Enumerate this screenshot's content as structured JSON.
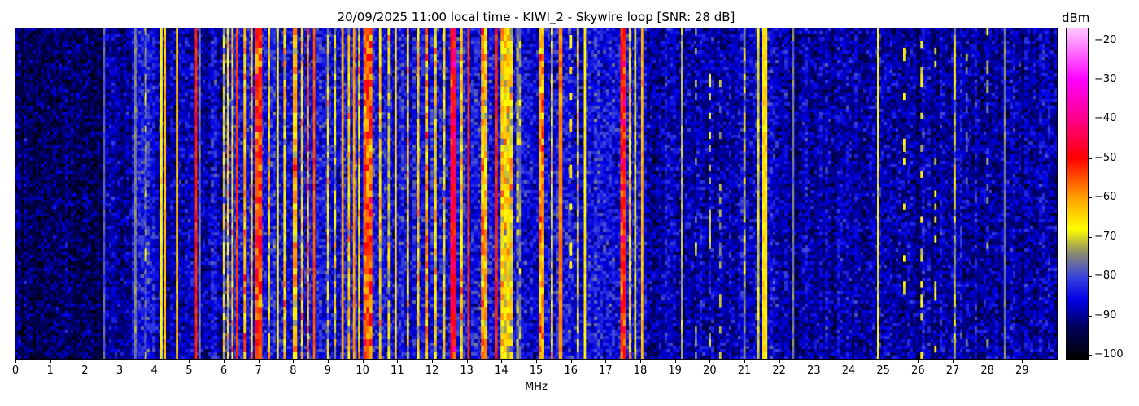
{
  "chart_data": {
    "type": "heatmap",
    "title": "20/09/2025 11:00 local time - KIWI_2 - Skywire loop [SNR: 28 dB]",
    "xlabel": "MHz",
    "ylabel": "",
    "xlim": [
      0,
      30
    ],
    "xticks": [
      0,
      1,
      2,
      3,
      4,
      5,
      6,
      7,
      8,
      9,
      10,
      11,
      12,
      13,
      14,
      15,
      16,
      17,
      18,
      19,
      20,
      21,
      22,
      23,
      24,
      25,
      26,
      27,
      28,
      29
    ],
    "colorbar": {
      "label": "dBm",
      "range": [
        -101,
        -17
      ],
      "ticks": [
        -20,
        -30,
        -40,
        -50,
        -60,
        -70,
        -80,
        -90,
        -100
      ],
      "colormap": [
        {
          "dbm": -101,
          "color": "#000000"
        },
        {
          "dbm": -93,
          "color": "#00005a"
        },
        {
          "dbm": -86,
          "color": "#0000e6"
        },
        {
          "dbm": -80,
          "color": "#3c46dc"
        },
        {
          "dbm": -74,
          "color": "#8c8c6e"
        },
        {
          "dbm": -68,
          "color": "#ffff00"
        },
        {
          "dbm": -60,
          "color": "#ffa000"
        },
        {
          "dbm": -50,
          "color": "#ff0000"
        },
        {
          "dbm": -40,
          "color": "#ff008c"
        },
        {
          "dbm": -30,
          "color": "#ff00ff"
        },
        {
          "dbm": -17,
          "color": "#ffc8ff"
        }
      ]
    },
    "noise_floor": [
      {
        "from": 0,
        "to": 2.5,
        "dbm": -93
      },
      {
        "from": 2.5,
        "to": 3.4,
        "dbm": -89
      },
      {
        "from": 3.4,
        "to": 4.0,
        "dbm": -83
      },
      {
        "from": 4.0,
        "to": 6.0,
        "dbm": -88
      },
      {
        "from": 6.0,
        "to": 18.2,
        "dbm": -85
      },
      {
        "from": 18.2,
        "to": 22.5,
        "dbm": -88
      },
      {
        "from": 22.5,
        "to": 30,
        "dbm": -89
      }
    ],
    "signals": [
      {
        "f": 2.55,
        "dbm": -78,
        "bw": 0.03,
        "style": "solid"
      },
      {
        "f": 3.45,
        "dbm": -75,
        "bw": 0.04,
        "style": "solid"
      },
      {
        "f": 3.75,
        "dbm": -78,
        "bw": 0.05,
        "style": "mottled"
      },
      {
        "f": 4.2,
        "dbm": -67,
        "bw": 0.04,
        "style": "solid"
      },
      {
        "f": 4.3,
        "dbm": -62,
        "bw": 0.03,
        "style": "solid"
      },
      {
        "f": 4.65,
        "dbm": -62,
        "bw": 0.03,
        "style": "solid"
      },
      {
        "f": 5.2,
        "dbm": -52,
        "bw": 0.04,
        "style": "solid"
      },
      {
        "f": 5.3,
        "dbm": -76,
        "bw": 0.03,
        "style": "solid"
      },
      {
        "f": 6.0,
        "dbm": -70,
        "bw": 0.03,
        "style": "mottled"
      },
      {
        "f": 6.12,
        "dbm": -67,
        "bw": 0.03,
        "style": "mottled"
      },
      {
        "f": 6.25,
        "dbm": -66,
        "bw": 0.04,
        "style": "mottled"
      },
      {
        "f": 6.38,
        "dbm": -53,
        "bw": 0.05,
        "style": "solid"
      },
      {
        "f": 6.6,
        "dbm": -60,
        "bw": 0.06,
        "style": "mottled"
      },
      {
        "f": 6.8,
        "dbm": -65,
        "bw": 0.05,
        "style": "mottled"
      },
      {
        "f": 7.0,
        "dbm": -53,
        "bw": 0.2,
        "style": "mottled"
      },
      {
        "f": 7.3,
        "dbm": -67,
        "bw": 0.04,
        "style": "mottled"
      },
      {
        "f": 7.55,
        "dbm": -68,
        "bw": 0.03,
        "style": "solid"
      },
      {
        "f": 7.75,
        "dbm": -66,
        "bw": 0.04,
        "style": "mottled"
      },
      {
        "f": 8.05,
        "dbm": -62,
        "bw": 0.12,
        "style": "mottled"
      },
      {
        "f": 8.25,
        "dbm": -66,
        "bw": 0.05,
        "style": "mottled"
      },
      {
        "f": 8.42,
        "dbm": -60,
        "bw": 0.05,
        "style": "mottled"
      },
      {
        "f": 8.6,
        "dbm": -55,
        "bw": 0.05,
        "style": "solid"
      },
      {
        "f": 9.0,
        "dbm": -67,
        "bw": 0.05,
        "style": "mottled"
      },
      {
        "f": 9.2,
        "dbm": -70,
        "bw": 0.04,
        "style": "mottled"
      },
      {
        "f": 9.42,
        "dbm": -60,
        "bw": 0.05,
        "style": "solid"
      },
      {
        "f": 9.6,
        "dbm": -66,
        "bw": 0.05,
        "style": "mottled"
      },
      {
        "f": 9.75,
        "dbm": -60,
        "bw": 0.04,
        "style": "solid"
      },
      {
        "f": 9.9,
        "dbm": -65,
        "bw": 0.05,
        "style": "mottled"
      },
      {
        "f": 10.15,
        "dbm": -56,
        "bw": 0.25,
        "style": "mottled"
      },
      {
        "f": 10.5,
        "dbm": -66,
        "bw": 0.05,
        "style": "mottled"
      },
      {
        "f": 10.75,
        "dbm": -70,
        "bw": 0.05,
        "style": "mottled"
      },
      {
        "f": 10.95,
        "dbm": -64,
        "bw": 0.05,
        "style": "solid"
      },
      {
        "f": 11.3,
        "dbm": -67,
        "bw": 0.04,
        "style": "mottled"
      },
      {
        "f": 11.6,
        "dbm": -66,
        "bw": 0.05,
        "style": "mottled"
      },
      {
        "f": 11.85,
        "dbm": -62,
        "bw": 0.05,
        "style": "mottled"
      },
      {
        "f": 12.1,
        "dbm": -66,
        "bw": 0.04,
        "style": "mottled"
      },
      {
        "f": 12.35,
        "dbm": -68,
        "bw": 0.04,
        "style": "mottled"
      },
      {
        "f": 12.6,
        "dbm": -47,
        "bw": 0.15,
        "style": "mottled"
      },
      {
        "f": 12.85,
        "dbm": -66,
        "bw": 0.05,
        "style": "mottled"
      },
      {
        "f": 13.05,
        "dbm": -53,
        "bw": 0.04,
        "style": "solid"
      },
      {
        "f": 13.5,
        "dbm": -62,
        "bw": 0.18,
        "style": "mottled"
      },
      {
        "f": 13.85,
        "dbm": -52,
        "bw": 0.05,
        "style": "solid"
      },
      {
        "f": 14.15,
        "dbm": -66,
        "bw": 0.35,
        "style": "mottled"
      },
      {
        "f": 14.5,
        "dbm": -76,
        "bw": 0.15,
        "style": "mottled"
      },
      {
        "f": 15.15,
        "dbm": -60,
        "bw": 0.15,
        "style": "mottled"
      },
      {
        "f": 15.45,
        "dbm": -68,
        "bw": 0.05,
        "style": "mottled"
      },
      {
        "f": 15.7,
        "dbm": -58,
        "bw": 0.1,
        "style": "solid"
      },
      {
        "f": 16.0,
        "dbm": -66,
        "bw": 0.04,
        "style": "intermittent"
      },
      {
        "f": 16.2,
        "dbm": -70,
        "bw": 0.04,
        "style": "mottled"
      },
      {
        "f": 16.4,
        "dbm": -67,
        "bw": 0.04,
        "style": "solid"
      },
      {
        "f": 17.5,
        "dbm": -50,
        "bw": 0.15,
        "style": "mottled"
      },
      {
        "f": 17.7,
        "dbm": -66,
        "bw": 0.05,
        "style": "mottled"
      },
      {
        "f": 17.85,
        "dbm": -70,
        "bw": 0.04,
        "style": "solid"
      },
      {
        "f": 18.05,
        "dbm": -62,
        "bw": 0.04,
        "style": "solid"
      },
      {
        "f": 19.2,
        "dbm": -72,
        "bw": 0.03,
        "style": "solid"
      },
      {
        "f": 19.6,
        "dbm": -74,
        "bw": 0.03,
        "style": "intermittent"
      },
      {
        "f": 20.0,
        "dbm": -70,
        "bw": 0.03,
        "style": "intermittent"
      },
      {
        "f": 20.3,
        "dbm": -74,
        "bw": 0.03,
        "style": "intermittent"
      },
      {
        "f": 21.0,
        "dbm": -74,
        "bw": 0.04,
        "style": "mottled"
      },
      {
        "f": 21.4,
        "dbm": -70,
        "bw": 0.04,
        "style": "solid"
      },
      {
        "f": 21.58,
        "dbm": -65,
        "bw": 0.15,
        "style": "solid"
      },
      {
        "f": 22.4,
        "dbm": -76,
        "bw": 0.04,
        "style": "solid"
      },
      {
        "f": 24.85,
        "dbm": -68,
        "bw": 0.04,
        "style": "solid"
      },
      {
        "f": 25.6,
        "dbm": -68,
        "bw": 0.03,
        "style": "intermittent"
      },
      {
        "f": 26.1,
        "dbm": -68,
        "bw": 0.03,
        "style": "intermittent"
      },
      {
        "f": 26.5,
        "dbm": -68,
        "bw": 0.03,
        "style": "intermittent"
      },
      {
        "f": 27.05,
        "dbm": -72,
        "bw": 0.06,
        "style": "mottled"
      },
      {
        "f": 27.4,
        "dbm": -76,
        "bw": 0.03,
        "style": "intermittent"
      },
      {
        "f": 28.0,
        "dbm": -72,
        "bw": 0.04,
        "style": "intermittent"
      },
      {
        "f": 28.5,
        "dbm": -76,
        "bw": 0.05,
        "style": "solid"
      }
    ]
  }
}
